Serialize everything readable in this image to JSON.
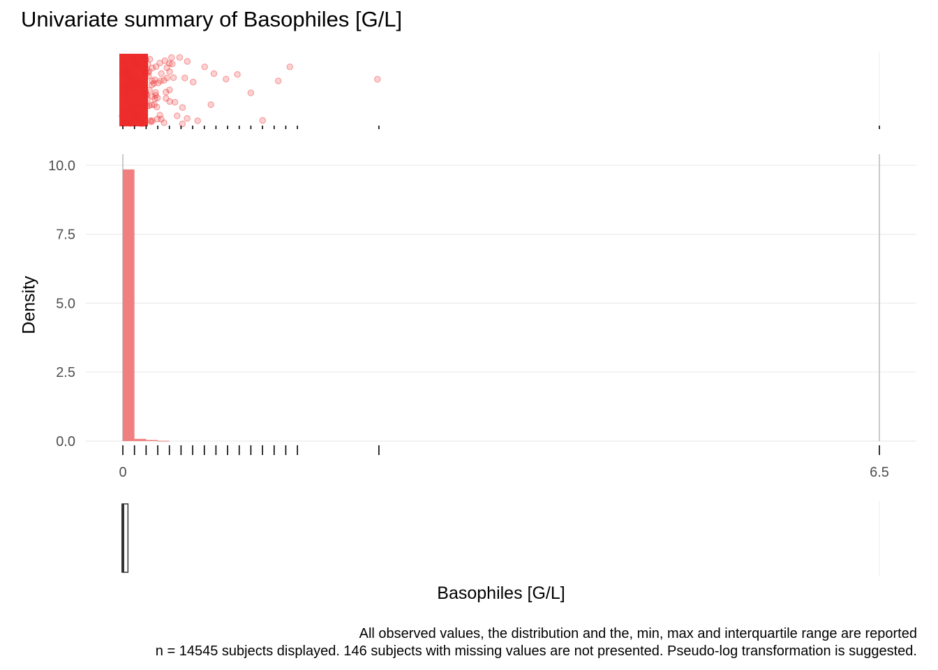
{
  "chart_data": [
    {
      "panel": "jitter",
      "type": "scatter",
      "points_color": "#ee2d2d",
      "x_approx": [
        0.01,
        0.02,
        0.03,
        0.04,
        0.05,
        0.06,
        0.07,
        0.08,
        0.09,
        0.1,
        0.11,
        0.12,
        0.13,
        0.14,
        0.15,
        0.16,
        0.17,
        0.18,
        0.19,
        0.2,
        0.22,
        0.24,
        0.26,
        0.28,
        0.3,
        0.32,
        0.34,
        0.36,
        0.38,
        0.4,
        0.42,
        0.45,
        0.5,
        0.55,
        0.6,
        0.65,
        0.7,
        0.75,
        0.8,
        0.9,
        1.0,
        1.1,
        1.2,
        1.35,
        1.45,
        2.2
      ]
    },
    {
      "panel": "histogram",
      "type": "bar",
      "ylabel": "Density",
      "ylim": [
        0,
        10.4
      ],
      "yticks": [
        "0.0",
        "2.5",
        "5.0",
        "7.5",
        "10.0"
      ],
      "xlim": [
        0,
        6.5
      ],
      "xticks": [
        "0",
        "6.5"
      ],
      "bar_color": "#f08080",
      "bins": [
        {
          "x0": 0.0,
          "x1": 0.1,
          "density": 9.85
        },
        {
          "x0": 0.1,
          "x1": 0.2,
          "density": 0.08
        },
        {
          "x0": 0.2,
          "x1": 0.3,
          "density": 0.04
        },
        {
          "x0": 0.3,
          "x1": 0.4,
          "density": 0.01
        }
      ],
      "rug_values": [
        0.0,
        0.1,
        0.2,
        0.3,
        0.4,
        0.5,
        0.6,
        0.7,
        0.8,
        0.9,
        1.0,
        1.1,
        1.2,
        1.3,
        1.4,
        1.5,
        2.2,
        6.5
      ]
    },
    {
      "panel": "boxplot",
      "type": "box",
      "min": 0.0,
      "q1": 0.0,
      "median": 0.03,
      "q3": 0.05,
      "max": 6.5
    }
  ],
  "labels": {
    "title": "Univariate summary of Basophiles [G/L]",
    "xlabel": "Basophiles [G/L]",
    "ylabel": "Density",
    "caption_1": "All observed values, the distribution and the, min, max and interquartile range are reported",
    "caption_2": "n = 14545 subjects displayed. 146 subjects with missing values are not presented. Pseudo-log transformation is suggested."
  }
}
